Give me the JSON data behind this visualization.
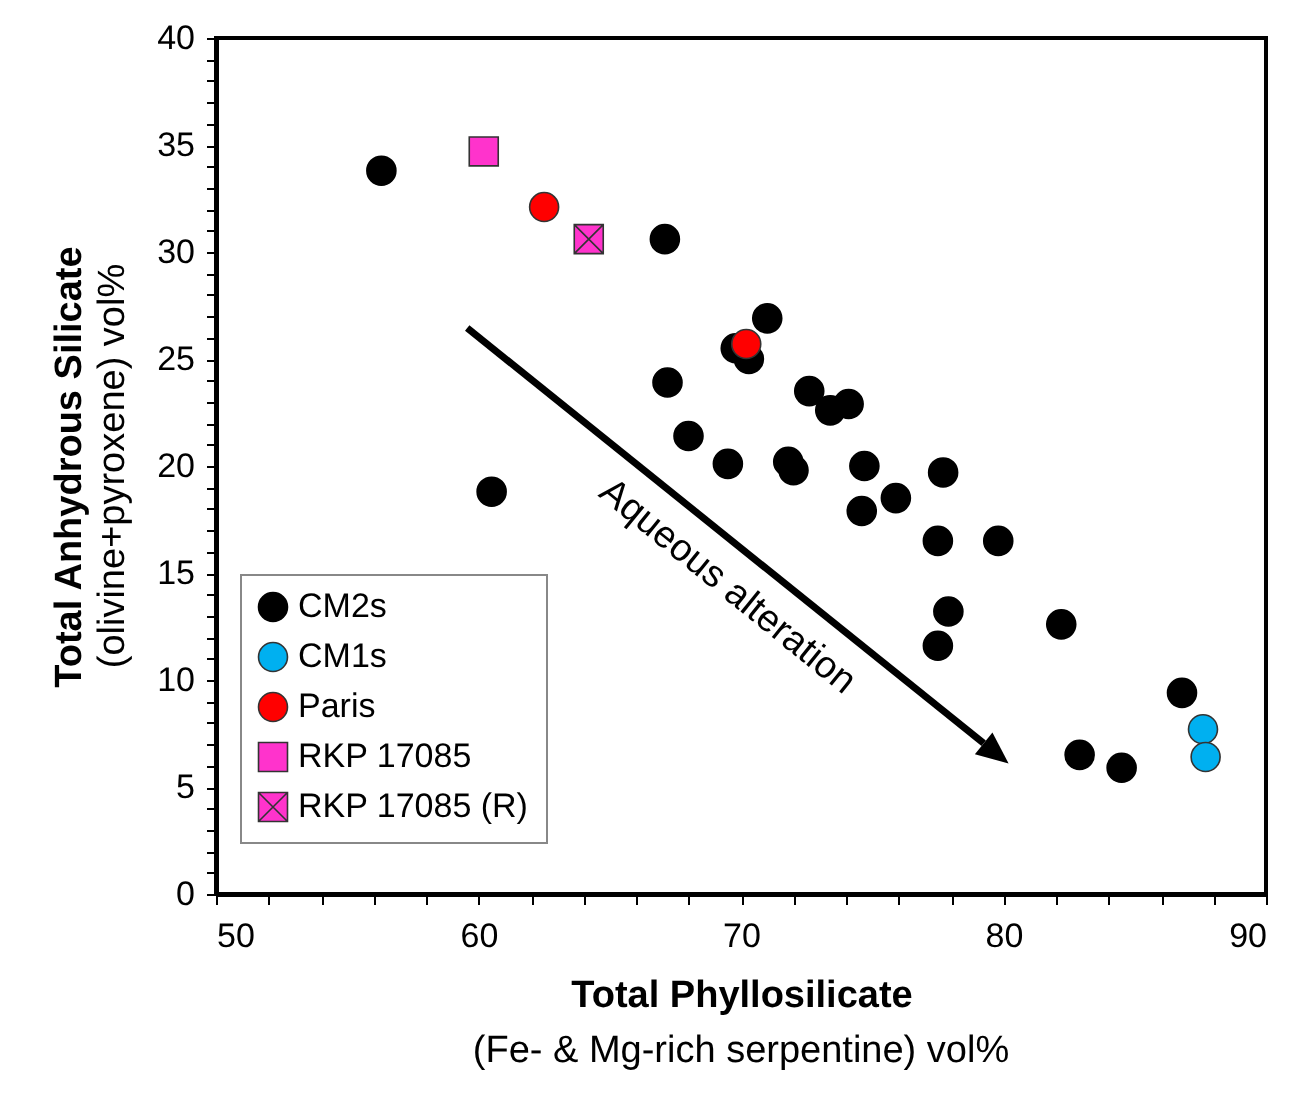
{
  "chart_data": {
    "type": "scatter",
    "xlabel": "Total Phyllosilicate\n(Fe- & Mg-rich serpentine) vol%",
    "ylabel": "Total Anhydrous Silicate\n(olivine+pyroxene) vol%",
    "xlim": [
      50,
      90
    ],
    "ylim": [
      0,
      40
    ],
    "xticks": [
      50,
      {
        "value": 52,
        "label": null
      },
      {
        "value": 54,
        "label": null
      },
      {
        "value": 56,
        "label": null
      },
      {
        "value": 58,
        "label": null
      },
      60,
      {
        "value": 62,
        "label": null
      },
      {
        "value": 64,
        "label": null
      },
      {
        "value": 66,
        "label": null
      },
      {
        "value": 68,
        "label": null
      },
      70,
      {
        "value": 72,
        "label": null
      },
      {
        "value": 74,
        "label": null
      },
      {
        "value": 76,
        "label": null
      },
      {
        "value": 78,
        "label": null
      },
      80,
      {
        "value": 82,
        "label": null
      },
      {
        "value": 84,
        "label": null
      },
      {
        "value": 86,
        "label": null
      },
      {
        "value": 88,
        "label": null
      },
      90
    ],
    "yticks": [
      0,
      {
        "value": 1,
        "label": null
      },
      {
        "value": 2,
        "label": null
      },
      {
        "value": 3,
        "label": null
      },
      {
        "value": 4,
        "label": null
      },
      5,
      {
        "value": 6,
        "label": null
      },
      {
        "value": 7,
        "label": null
      },
      {
        "value": 8,
        "label": null
      },
      {
        "value": 9,
        "label": null
      },
      10,
      {
        "value": 11,
        "label": null
      },
      {
        "value": 12,
        "label": null
      },
      {
        "value": 13,
        "label": null
      },
      {
        "value": 14,
        "label": null
      },
      15,
      {
        "value": 16,
        "label": null
      },
      {
        "value": 17,
        "label": null
      },
      {
        "value": 18,
        "label": null
      },
      {
        "value": 19,
        "label": null
      },
      20,
      {
        "value": 21,
        "label": null
      },
      {
        "value": 22,
        "label": null
      },
      {
        "value": 23,
        "label": null
      },
      {
        "value": 24,
        "label": null
      },
      25,
      {
        "value": 26,
        "label": null
      },
      {
        "value": 27,
        "label": null
      },
      {
        "value": 28,
        "label": null
      },
      {
        "value": 29,
        "label": null
      },
      30,
      {
        "value": 31,
        "label": null
      },
      {
        "value": 32,
        "label": null
      },
      {
        "value": 33,
        "label": null
      },
      {
        "value": 34,
        "label": null
      },
      35,
      {
        "value": 36,
        "label": null
      },
      {
        "value": 37,
        "label": null
      },
      {
        "value": 38,
        "label": null
      },
      {
        "value": 39,
        "label": null
      },
      40
    ],
    "grid": false,
    "legend": "bottom left",
    "annotations": [
      "Aqueous alteration"
    ],
    "series": [
      {
        "name": "CM2s",
        "color": "#000000",
        "marker": "circle",
        "x": [
          56.3,
          67.1,
          71.0,
          69.8,
          70.3,
          67.2,
          72.6,
          73.4,
          74.1,
          68.0,
          69.5,
          71.8,
          72.0,
          60.5,
          74.7,
          75.9,
          77.7,
          74.6,
          77.5,
          79.8,
          77.9,
          77.5,
          82.2,
          86.8,
          82.9,
          84.5
        ],
        "values": [
          33.8,
          30.6,
          26.9,
          25.5,
          25.0,
          23.9,
          23.5,
          22.6,
          22.9,
          21.4,
          20.1,
          20.2,
          19.8,
          18.8,
          20.0,
          18.5,
          19.7,
          17.9,
          16.5,
          16.5,
          13.2,
          11.6,
          12.6,
          9.4,
          6.5,
          5.9
        ]
      },
      {
        "name": "CM1s",
        "color": "#00b0f0",
        "marker": "circle",
        "x": [
          87.6,
          87.7
        ],
        "values": [
          7.7,
          6.4
        ]
      },
      {
        "name": "Paris",
        "color": "#ff0000",
        "marker": "circle",
        "x": [
          62.5,
          70.2
        ],
        "values": [
          32.1,
          25.7
        ]
      },
      {
        "name": "RKP 17085",
        "color": "#ff33cc",
        "marker": "square",
        "x": [
          60.2
        ],
        "values": [
          34.7
        ]
      },
      {
        "name": "RKP 17085 (R)",
        "color": "#ff33cc",
        "marker": "cross",
        "x": [
          64.2
        ],
        "values": [
          30.6
        ]
      }
    ]
  }
}
